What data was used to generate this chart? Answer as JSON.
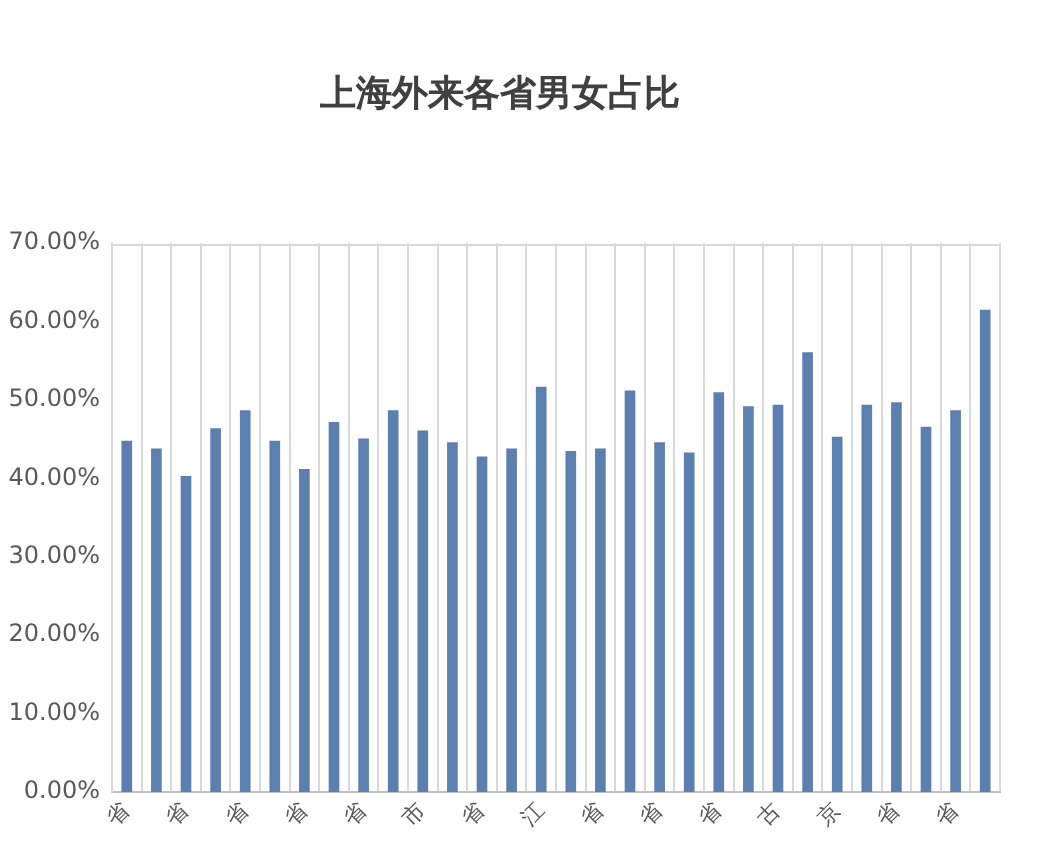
{
  "chart_data": {
    "type": "bar",
    "title": "上海外来各省男女占比",
    "categories": [
      "省",
      null,
      "省",
      null,
      "省",
      null,
      "省",
      null,
      "省",
      null,
      "市",
      null,
      "省",
      null,
      "江",
      null,
      "省",
      null,
      "省",
      null,
      "省",
      null,
      "古",
      null,
      "京",
      null,
      "省",
      null,
      "省",
      null
    ],
    "values": [
      44.8,
      43.8,
      40.3,
      46.4,
      48.7,
      44.8,
      41.2,
      47.2,
      45.1,
      48.7,
      46.1,
      44.6,
      42.8,
      43.8,
      51.7,
      43.5,
      43.8,
      51.2,
      44.6,
      43.3,
      51.0,
      49.2,
      49.4,
      56.1,
      45.3,
      49.4,
      49.7,
      46.6,
      48.7,
      61.5
    ],
    "color": "#5b7fae",
    "ylim": [
      0,
      70
    ],
    "yticks": [
      {
        "value": 0,
        "label": "0.00%"
      },
      {
        "value": 10,
        "label": "10.00%"
      },
      {
        "value": 20,
        "label": "20.00%"
      },
      {
        "value": 30,
        "label": "30.00%"
      },
      {
        "value": 40,
        "label": "40.00%"
      },
      {
        "value": 50,
        "label": "50.00%"
      },
      {
        "value": 60,
        "label": "60.00%"
      },
      {
        "value": 70,
        "label": "70.00%"
      }
    ],
    "grid": "x"
  }
}
